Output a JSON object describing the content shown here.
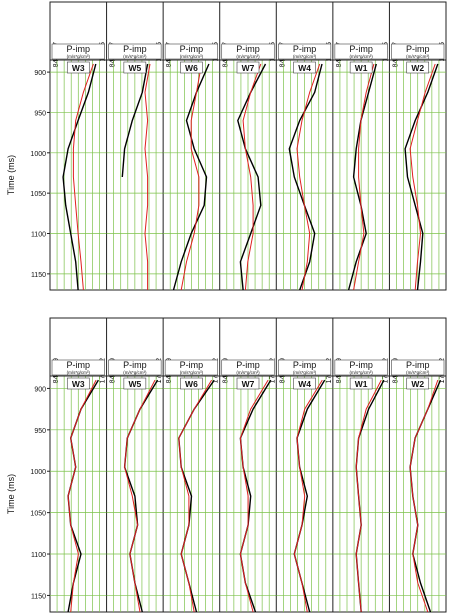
{
  "chart_data": [
    {
      "type": "well-log",
      "ylabel": "Time (ms)",
      "track_title": "P-imp",
      "track_unit": "(m/s*g/cm³)",
      "ylim": [
        885,
        1170
      ],
      "yticks": [
        900,
        950,
        1000,
        1050,
        1100,
        1150
      ],
      "xlim": [
        8444.47,
        17025
      ],
      "xticks": [
        8444.47,
        17025
      ],
      "grid": true,
      "time": [
        890,
        925,
        960,
        995,
        1030,
        1065,
        1100,
        1135,
        1170
      ],
      "wells": [
        {
          "name": "W3",
          "series": [
            {
              "color": "#000000",
              "values": [
                15700,
                14450,
                12700,
                11000,
                10150,
                10600,
                11450,
                12300,
                12700
              ]
            },
            {
              "color": "#e02020",
              "values": [
                15300,
                13600,
                12300,
                11900,
                11900,
                12300,
                12700,
                13200,
                13600
              ]
            }
          ]
        },
        {
          "name": "W5",
          "series": [
            {
              "color": "#000000",
              "values": [
                14900,
                14000,
                12300,
                11000,
                10600,
                null,
                null,
                null,
                null
              ]
            },
            {
              "color": "#e02020",
              "values": [
                15300,
                14450,
                14900,
                14450,
                14900,
                14900,
                14450,
                14900,
                14900
              ]
            }
          ]
        },
        {
          "name": "W6",
          "series": [
            {
              "color": "#000000",
              "values": [
                15700,
                13600,
                11900,
                13200,
                15300,
                14900,
                12700,
                11000,
                9700
              ]
            },
            {
              "color": "#e02020",
              "values": [
                14450,
                13600,
                12700,
                12700,
                14000,
                14000,
                13200,
                11900,
                11000
              ]
            }
          ]
        },
        {
          "name": "W7",
          "series": [
            {
              "color": "#000000",
              "values": [
                15700,
                13200,
                11000,
                12300,
                14450,
                14900,
                13200,
                11450,
                11900
              ]
            },
            {
              "color": "#e02020",
              "values": [
                14900,
                13200,
                11900,
                12300,
                13200,
                13600,
                13600,
                12700,
                12300
              ]
            }
          ]
        },
        {
          "name": "W4",
          "series": [
            {
              "color": "#000000",
              "values": [
                15700,
                14450,
                11900,
                10150,
                11000,
                12700,
                14450,
                13600,
                11900
              ]
            },
            {
              "color": "#e02020",
              "values": [
                15300,
                13600,
                12300,
                11450,
                11900,
                12700,
                13600,
                13200,
                12300
              ]
            }
          ]
        },
        {
          "name": "W1",
          "series": [
            {
              "color": "#000000",
              "values": [
                15300,
                14000,
                12700,
                11900,
                11450,
                12700,
                13600,
                11900,
                10600
              ]
            },
            {
              "color": "#e02020",
              "values": [
                14900,
                13600,
                12700,
                12300,
                12300,
                12700,
                13200,
                12300,
                11450
              ]
            }
          ]
        },
        {
          "name": "W2",
          "series": [
            {
              "color": "#000000",
              "values": [
                16150,
                14450,
                12300,
                10600,
                11000,
                12300,
                13600,
                13200,
                12700
              ]
            },
            {
              "color": "#e02020",
              "values": [
                15700,
                14000,
                12700,
                11450,
                11900,
                12700,
                13200,
                12700,
                12300
              ]
            }
          ]
        }
      ]
    },
    {
      "type": "well-log",
      "ylabel": "Time (ms)",
      "track_title": "P-imp",
      "track_unit": "(m/s*g/cm³)",
      "ylim": [
        885,
        1170
      ],
      "yticks": [
        900,
        950,
        1000,
        1050,
        1100,
        1150
      ],
      "xlim": [
        8445.99,
        17024.2
      ],
      "xticks": [
        8445.99,
        17024.2
      ],
      "grid": true,
      "time": [
        890,
        925,
        960,
        995,
        1030,
        1065,
        1100,
        1135,
        1170
      ],
      "wells": [
        {
          "name": "W3",
          "series": [
            {
              "color": "#000000",
              "values": [
                16150,
                13200,
                11450,
                12300,
                11000,
                11450,
                13200,
                11900,
                11000
              ]
            },
            {
              "color": "#e02020",
              "values": [
                15750,
                13200,
                11450,
                12300,
                11000,
                11450,
                12750,
                11900,
                11450
              ]
            }
          ]
        },
        {
          "name": "W5",
          "series": [
            {
              "color": "#000000",
              "values": [
                16600,
                13600,
                11450,
                11000,
                12750,
                13200,
                11900,
                12750,
                14000
              ]
            },
            {
              "color": "#e02020",
              "values": [
                16150,
                13600,
                11450,
                11000,
                12300,
                13200,
                11900,
                12750,
                13600
              ]
            }
          ]
        },
        {
          "name": "W6",
          "series": [
            {
              "color": "#000000",
              "values": [
                16600,
                13200,
                10600,
                11000,
                12750,
                12300,
                11000,
                12300,
                13600
              ]
            },
            {
              "color": "#e02020",
              "values": [
                16150,
                13200,
                10600,
                11000,
                12300,
                12300,
                11000,
                12300,
                13200
              ]
            }
          ]
        },
        {
          "name": "W7",
          "series": [
            {
              "color": "#000000",
              "values": [
                16600,
                13600,
                11450,
                11900,
                13200,
                12750,
                11450,
                12300,
                14000
              ]
            },
            {
              "color": "#e02020",
              "values": [
                16150,
                13200,
                11450,
                11900,
                12750,
                12750,
                11450,
                12300,
                13600
              ]
            }
          ]
        },
        {
          "name": "W4",
          "series": [
            {
              "color": "#000000",
              "values": [
                16150,
                13200,
                11450,
                11900,
                13200,
                12300,
                11000,
                12300,
                13600
              ]
            },
            {
              "color": "#e02020",
              "values": [
                15750,
                12750,
                11450,
                11900,
                12750,
                12300,
                11000,
                12300,
                13200
              ]
            }
          ]
        },
        {
          "name": "W1",
          "series": [
            {
              "color": "#000000",
              "values": [
                16600,
                14000,
                12300,
                11900,
                12300,
                12750,
                11900,
                12300,
                12750
              ]
            },
            {
              "color": "#e02020",
              "values": [
                16150,
                13600,
                12300,
                11900,
                12300,
                12750,
                11900,
                12300,
                12750
              ]
            }
          ]
        },
        {
          "name": "W2",
          "series": [
            {
              "color": "#000000",
              "values": [
                16600,
                14450,
                12300,
                11450,
                11900,
                12750,
                11900,
                13200,
                14900
              ]
            },
            {
              "color": "#e02020",
              "values": [
                16150,
                14450,
                12300,
                11450,
                11900,
                12750,
                11900,
                12750,
                14450
              ]
            }
          ]
        }
      ]
    }
  ]
}
